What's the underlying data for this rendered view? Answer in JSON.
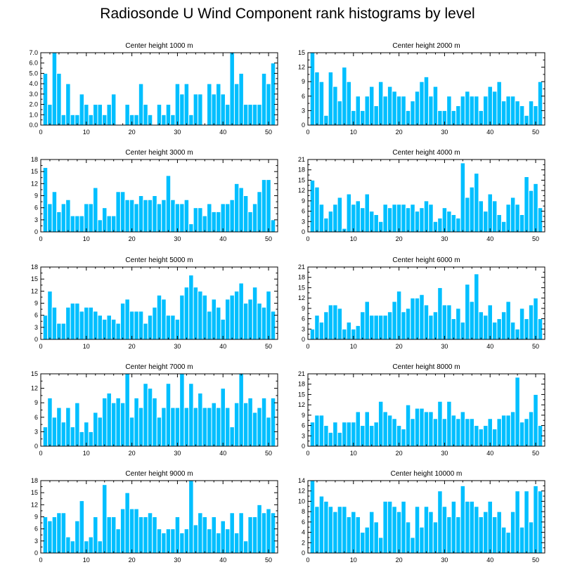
{
  "page": {
    "title": "Radiosonde U Wind Component rank histograms by level"
  },
  "style": {
    "bar_color": "#00BFFF",
    "bar_edge_color": "#ffffff",
    "axis_color": "#000000",
    "text_color": "#000000"
  },
  "chart_data": [
    {
      "type": "bar",
      "title": "Center height 1000 m",
      "xlim": [
        0,
        52
      ],
      "ylim": [
        0,
        7
      ],
      "xticks": [
        0,
        10,
        20,
        30,
        40,
        50
      ],
      "yticks": [
        0,
        1,
        2,
        3,
        4,
        5,
        6,
        7
      ],
      "ytick_labels": [
        "0.0",
        "1.0",
        "2.0",
        "3.0",
        "4.0",
        "5.0",
        "6.0",
        "7.0"
      ],
      "categories": [
        1,
        2,
        3,
        4,
        5,
        6,
        7,
        8,
        9,
        10,
        11,
        12,
        13,
        14,
        15,
        16,
        17,
        18,
        19,
        20,
        21,
        22,
        23,
        24,
        25,
        26,
        27,
        28,
        29,
        30,
        31,
        32,
        33,
        34,
        35,
        36,
        37,
        38,
        39,
        40,
        41,
        42,
        43,
        44,
        45,
        46,
        47,
        48,
        49,
        50,
        51
      ],
      "values": [
        5,
        2,
        7,
        5,
        1,
        4,
        1,
        1,
        3,
        2,
        1,
        2,
        2,
        1,
        2,
        3,
        0,
        0,
        2,
        1,
        1,
        4,
        2,
        1,
        0,
        2,
        1,
        2,
        1,
        4,
        3,
        4,
        1,
        3,
        3,
        0,
        4,
        3,
        4,
        3,
        2,
        7,
        4,
        5,
        2,
        2,
        2,
        2,
        5,
        4,
        6
      ]
    },
    {
      "type": "bar",
      "title": "Center height 2000 m",
      "xlim": [
        0,
        52
      ],
      "ylim": [
        0,
        15
      ],
      "xticks": [
        0,
        10,
        20,
        30,
        40,
        50
      ],
      "yticks": [
        0,
        3,
        6,
        9,
        12,
        15
      ],
      "ytick_labels": [
        "0",
        "3",
        "6",
        "9",
        "12",
        "15"
      ],
      "categories": [
        1,
        2,
        3,
        4,
        5,
        6,
        7,
        8,
        9,
        10,
        11,
        12,
        13,
        14,
        15,
        16,
        17,
        18,
        19,
        20,
        21,
        22,
        23,
        24,
        25,
        26,
        27,
        28,
        29,
        30,
        31,
        32,
        33,
        34,
        35,
        36,
        37,
        38,
        39,
        40,
        41,
        42,
        43,
        44,
        45,
        46,
        47,
        48,
        49,
        50,
        51
      ],
      "values": [
        15,
        11,
        9,
        2,
        11,
        8,
        5,
        12,
        9,
        3,
        6,
        3,
        6,
        8,
        4,
        9,
        6,
        8,
        7,
        6,
        6,
        3,
        5,
        7,
        9,
        10,
        6,
        8,
        3,
        3,
        6,
        3,
        4,
        6,
        7,
        6,
        6,
        3,
        6,
        8,
        7,
        9,
        5,
        6,
        6,
        5,
        4,
        2,
        5,
        4,
        9
      ]
    },
    {
      "type": "bar",
      "title": "Center height 3000 m",
      "xlim": [
        0,
        52
      ],
      "ylim": [
        0,
        18
      ],
      "xticks": [
        0,
        10,
        20,
        30,
        40,
        50
      ],
      "yticks": [
        0,
        3,
        6,
        9,
        12,
        15,
        18
      ],
      "ytick_labels": [
        "0",
        "3",
        "6",
        "9",
        "12",
        "15",
        "18"
      ],
      "categories": [
        1,
        2,
        3,
        4,
        5,
        6,
        7,
        8,
        9,
        10,
        11,
        12,
        13,
        14,
        15,
        16,
        17,
        18,
        19,
        20,
        21,
        22,
        23,
        24,
        25,
        26,
        27,
        28,
        29,
        30,
        31,
        32,
        33,
        34,
        35,
        36,
        37,
        38,
        39,
        40,
        41,
        42,
        43,
        44,
        45,
        46,
        47,
        48,
        49,
        50,
        51
      ],
      "values": [
        16,
        7,
        10,
        5,
        7,
        8,
        4,
        4,
        4,
        7,
        7,
        11,
        3,
        6,
        4,
        4,
        10,
        10,
        8,
        8,
        7,
        9,
        8,
        8,
        9,
        7,
        8,
        14,
        8,
        7,
        7,
        8,
        2,
        6,
        6,
        4,
        7,
        5,
        5,
        7,
        7,
        8,
        12,
        11,
        9,
        5,
        7,
        10,
        13,
        13,
        3
      ]
    },
    {
      "type": "bar",
      "title": "Center height 4000 m",
      "xlim": [
        0,
        52
      ],
      "ylim": [
        0,
        21
      ],
      "xticks": [
        0,
        10,
        20,
        30,
        40,
        50
      ],
      "yticks": [
        0,
        3,
        6,
        9,
        12,
        15,
        18,
        21
      ],
      "ytick_labels": [
        "0",
        "3",
        "6",
        "9",
        "12",
        "15",
        "18",
        "21"
      ],
      "categories": [
        1,
        2,
        3,
        4,
        5,
        6,
        7,
        8,
        9,
        10,
        11,
        12,
        13,
        14,
        15,
        16,
        17,
        18,
        19,
        20,
        21,
        22,
        23,
        24,
        25,
        26,
        27,
        28,
        29,
        30,
        31,
        32,
        33,
        34,
        35,
        36,
        37,
        38,
        39,
        40,
        41,
        42,
        43,
        44,
        45,
        46,
        47,
        48,
        49,
        50,
        51
      ],
      "values": [
        15,
        13,
        8,
        4,
        6,
        8,
        10,
        1,
        11,
        8,
        9,
        7,
        11,
        6,
        5,
        3,
        8,
        7,
        8,
        8,
        8,
        7,
        8,
        6,
        7,
        9,
        8,
        3,
        4,
        7,
        6,
        5,
        4,
        20,
        10,
        13,
        17,
        9,
        6,
        11,
        9,
        5,
        3,
        8,
        10,
        8,
        5,
        16,
        12,
        14,
        7
      ]
    },
    {
      "type": "bar",
      "title": "Center height 5000 m",
      "xlim": [
        0,
        52
      ],
      "ylim": [
        0,
        18
      ],
      "xticks": [
        0,
        10,
        20,
        30,
        40,
        50
      ],
      "yticks": [
        0,
        3,
        6,
        9,
        12,
        15,
        18
      ],
      "ytick_labels": [
        "0",
        "3",
        "6",
        "9",
        "12",
        "15",
        "18"
      ],
      "categories": [
        1,
        2,
        3,
        4,
        5,
        6,
        7,
        8,
        9,
        10,
        11,
        12,
        13,
        14,
        15,
        16,
        17,
        18,
        19,
        20,
        21,
        22,
        23,
        24,
        25,
        26,
        27,
        28,
        29,
        30,
        31,
        32,
        33,
        34,
        35,
        36,
        37,
        38,
        39,
        40,
        41,
        42,
        43,
        44,
        45,
        46,
        47,
        48,
        49,
        50,
        51
      ],
      "values": [
        6,
        12,
        8,
        4,
        4,
        8,
        9,
        9,
        7,
        8,
        8,
        7,
        6,
        5,
        6,
        5,
        4,
        9,
        10,
        7,
        7,
        7,
        4,
        6,
        8,
        11,
        10,
        6,
        6,
        5,
        11,
        13,
        16,
        13,
        12,
        11,
        7,
        10,
        8,
        5,
        10,
        11,
        12,
        14,
        9,
        10,
        13,
        9,
        8,
        12,
        7
      ]
    },
    {
      "type": "bar",
      "title": "Center height 6000 m",
      "xlim": [
        0,
        52
      ],
      "ylim": [
        0,
        21
      ],
      "xticks": [
        0,
        10,
        20,
        30,
        40,
        50
      ],
      "yticks": [
        0,
        3,
        6,
        9,
        12,
        15,
        18,
        21
      ],
      "ytick_labels": [
        "0",
        "3",
        "6",
        "9",
        "12",
        "15",
        "18",
        "21"
      ],
      "categories": [
        1,
        2,
        3,
        4,
        5,
        6,
        7,
        8,
        9,
        10,
        11,
        12,
        13,
        14,
        15,
        16,
        17,
        18,
        19,
        20,
        21,
        22,
        23,
        24,
        25,
        26,
        27,
        28,
        29,
        30,
        31,
        32,
        33,
        34,
        35,
        36,
        37,
        38,
        39,
        40,
        41,
        42,
        43,
        44,
        45,
        46,
        47,
        48,
        49,
        50,
        51
      ],
      "values": [
        3,
        7,
        5,
        8,
        10,
        10,
        9,
        3,
        5,
        3,
        4,
        8,
        11,
        7,
        7,
        7,
        7,
        8,
        11,
        14,
        8,
        9,
        12,
        12,
        13,
        10,
        7,
        8,
        15,
        10,
        10,
        6,
        9,
        5,
        16,
        11,
        19,
        8,
        7,
        10,
        5,
        6,
        8,
        11,
        5,
        3,
        9,
        6,
        10,
        12,
        6
      ]
    },
    {
      "type": "bar",
      "title": "Center height 7000 m",
      "xlim": [
        0,
        52
      ],
      "ylim": [
        0,
        15
      ],
      "xticks": [
        0,
        10,
        20,
        30,
        40,
        50
      ],
      "yticks": [
        0,
        3,
        6,
        9,
        12,
        15
      ],
      "ytick_labels": [
        "0",
        "3",
        "6",
        "9",
        "12",
        "15"
      ],
      "categories": [
        1,
        2,
        3,
        4,
        5,
        6,
        7,
        8,
        9,
        10,
        11,
        12,
        13,
        14,
        15,
        16,
        17,
        18,
        19,
        20,
        21,
        22,
        23,
        24,
        25,
        26,
        27,
        28,
        29,
        30,
        31,
        32,
        33,
        34,
        35,
        36,
        37,
        38,
        39,
        40,
        41,
        42,
        43,
        44,
        45,
        46,
        47,
        48,
        49,
        50,
        51
      ],
      "values": [
        4,
        10,
        6,
        8,
        5,
        8,
        4,
        9,
        3,
        5,
        3,
        7,
        6,
        10,
        11,
        9,
        10,
        9,
        15,
        6,
        10,
        8,
        13,
        12,
        10,
        6,
        8,
        13,
        8,
        8,
        15,
        8,
        13,
        8,
        11,
        8,
        8,
        9,
        8,
        12,
        8,
        4,
        9,
        15,
        9,
        10,
        7,
        8,
        10,
        6,
        10
      ]
    },
    {
      "type": "bar",
      "title": "Center height 8000 m",
      "xlim": [
        0,
        52
      ],
      "ylim": [
        0,
        21
      ],
      "xticks": [
        0,
        10,
        20,
        30,
        40,
        50
      ],
      "yticks": [
        0,
        3,
        6,
        9,
        12,
        15,
        18,
        21
      ],
      "ytick_labels": [
        "0",
        "3",
        "6",
        "9",
        "12",
        "15",
        "18",
        "21"
      ],
      "categories": [
        1,
        2,
        3,
        4,
        5,
        6,
        7,
        8,
        9,
        10,
        11,
        12,
        13,
        14,
        15,
        16,
        17,
        18,
        19,
        20,
        21,
        22,
        23,
        24,
        25,
        26,
        27,
        28,
        29,
        30,
        31,
        32,
        33,
        34,
        35,
        36,
        37,
        38,
        39,
        40,
        41,
        42,
        43,
        44,
        45,
        46,
        47,
        48,
        49,
        50,
        51
      ],
      "values": [
        7,
        9,
        9,
        6,
        4,
        7,
        4,
        7,
        7,
        7,
        10,
        6,
        10,
        6,
        7,
        13,
        10,
        9,
        8,
        6,
        5,
        12,
        8,
        11,
        11,
        10,
        10,
        8,
        13,
        8,
        13,
        9,
        8,
        10,
        8,
        8,
        6,
        5,
        6,
        8,
        5,
        8,
        9,
        9,
        10,
        20,
        7,
        8,
        10,
        15,
        6
      ]
    },
    {
      "type": "bar",
      "title": "Center height 9000 m",
      "xlim": [
        0,
        52
      ],
      "ylim": [
        0,
        18
      ],
      "xticks": [
        0,
        10,
        20,
        30,
        40,
        50
      ],
      "yticks": [
        0,
        3,
        6,
        9,
        12,
        15,
        18
      ],
      "ytick_labels": [
        "0",
        "3",
        "6",
        "9",
        "12",
        "15",
        "18"
      ],
      "categories": [
        1,
        2,
        3,
        4,
        5,
        6,
        7,
        8,
        9,
        10,
        11,
        12,
        13,
        14,
        15,
        16,
        17,
        18,
        19,
        20,
        21,
        22,
        23,
        24,
        25,
        26,
        27,
        28,
        29,
        30,
        31,
        32,
        33,
        34,
        35,
        36,
        37,
        38,
        39,
        40,
        41,
        42,
        43,
        44,
        45,
        46,
        47,
        48,
        49,
        50,
        51
      ],
      "values": [
        9,
        8,
        9,
        10,
        10,
        4,
        3,
        8,
        13,
        3,
        4,
        9,
        3,
        17,
        9,
        9,
        6,
        11,
        15,
        11,
        11,
        9,
        9,
        10,
        9,
        6,
        5,
        6,
        6,
        9,
        5,
        6,
        18,
        7,
        10,
        9,
        6,
        9,
        5,
        8,
        6,
        10,
        5,
        10,
        3,
        9,
        9,
        12,
        10,
        11,
        10
      ]
    },
    {
      "type": "bar",
      "title": "Center height 10000 m",
      "xlim": [
        0,
        52
      ],
      "ylim": [
        0,
        14
      ],
      "xticks": [
        0,
        10,
        20,
        30,
        40,
        50
      ],
      "yticks": [
        0,
        2,
        4,
        6,
        8,
        10,
        12,
        14
      ],
      "ytick_labels": [
        "0",
        "2",
        "4",
        "6",
        "8",
        "10",
        "12",
        "14"
      ],
      "categories": [
        1,
        2,
        3,
        4,
        5,
        6,
        7,
        8,
        9,
        10,
        11,
        12,
        13,
        14,
        15,
        16,
        17,
        18,
        19,
        20,
        21,
        22,
        23,
        24,
        25,
        26,
        27,
        28,
        29,
        30,
        31,
        32,
        33,
        34,
        35,
        36,
        37,
        38,
        39,
        40,
        41,
        42,
        43,
        44,
        45,
        46,
        47,
        48,
        49,
        50,
        51
      ],
      "values": [
        14,
        9,
        11,
        10,
        9,
        8,
        9,
        9,
        7,
        8,
        7,
        4,
        5,
        8,
        6,
        3,
        10,
        10,
        9,
        8,
        10,
        6,
        3,
        9,
        5,
        9,
        8,
        6,
        12,
        9,
        7,
        10,
        7,
        13,
        10,
        10,
        9,
        7,
        8,
        10,
        7,
        8,
        5,
        4,
        8,
        12,
        5,
        12,
        6,
        13,
        12
      ]
    }
  ]
}
